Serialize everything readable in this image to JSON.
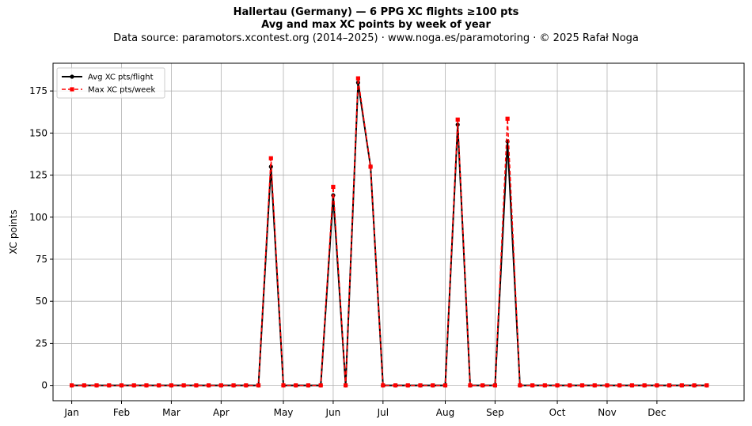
{
  "chart_data": {
    "type": "line",
    "title": "Hallertau (Germany)  —  6 PPG XC flights ≥100 pts",
    "subtitle": "Avg and max XC points by week of year",
    "source_line": "Data source: paramotors.xcontest.org (2014–2025)  ·  www.noga.es/paramotoring  ·  © 2025 Rafał Noga",
    "xlabel": "",
    "ylabel": "XC points",
    "xlim": [
      -1.5,
      54.0
    ],
    "ylim": [
      -9.1,
      191.5
    ],
    "y_ticks": [
      0,
      25,
      50,
      75,
      100,
      125,
      150,
      175
    ],
    "x_ticks": [
      {
        "label": "Jan",
        "pos": 0
      },
      {
        "label": "Feb",
        "pos": 4
      },
      {
        "label": "Mar",
        "pos": 8
      },
      {
        "label": "Apr",
        "pos": 12
      },
      {
        "label": "May",
        "pos": 17
      },
      {
        "label": "Jun",
        "pos": 21
      },
      {
        "label": "Jul",
        "pos": 25
      },
      {
        "label": "Aug",
        "pos": 30
      },
      {
        "label": "Sep",
        "pos": 34
      },
      {
        "label": "Oct",
        "pos": 39
      },
      {
        "label": "Nov",
        "pos": 43
      },
      {
        "label": "Dec",
        "pos": 47
      }
    ],
    "x": [
      0,
      1,
      2,
      3,
      4,
      5,
      6,
      7,
      8,
      9,
      10,
      11,
      12,
      13,
      14,
      15,
      16,
      17,
      18,
      19,
      20,
      21,
      22,
      23,
      24,
      25,
      26,
      27,
      28,
      29,
      30,
      31,
      32,
      33,
      34,
      35,
      36,
      37,
      38,
      39,
      40,
      41,
      42,
      43,
      44,
      45,
      46,
      47,
      48,
      49,
      50,
      51
    ],
    "series": [
      {
        "name": "Avg XC pts/flight",
        "color": "#000000",
        "style": "solid",
        "marker": "circle",
        "values": [
          0,
          0,
          0,
          0,
          0,
          0,
          0,
          0,
          0,
          0,
          0,
          0,
          0,
          0,
          0,
          0,
          130,
          0,
          0,
          0,
          0,
          113,
          0,
          180,
          130,
          0,
          0,
          0,
          0,
          0,
          0,
          155,
          0,
          0,
          0,
          145,
          0,
          0,
          0,
          0,
          0,
          0,
          0,
          0,
          0,
          0,
          0,
          0,
          0,
          0,
          0,
          0
        ]
      },
      {
        "name": "Max XC pts/week",
        "color": "#ff0000",
        "style": "dashed",
        "marker": "square",
        "values": [
          0,
          0,
          0,
          0,
          0,
          0,
          0,
          0,
          0,
          0,
          0,
          0,
          0,
          0,
          0,
          0,
          135,
          0,
          0,
          0,
          0,
          118,
          0,
          182.5,
          130,
          0,
          0,
          0,
          0,
          0,
          0,
          158,
          0,
          0,
          0,
          158.5,
          0,
          0,
          0,
          0,
          0,
          0,
          0,
          0,
          0,
          0,
          0,
          0,
          0,
          0,
          0,
          0
        ]
      }
    ],
    "grid": true,
    "legend": "top-left"
  }
}
